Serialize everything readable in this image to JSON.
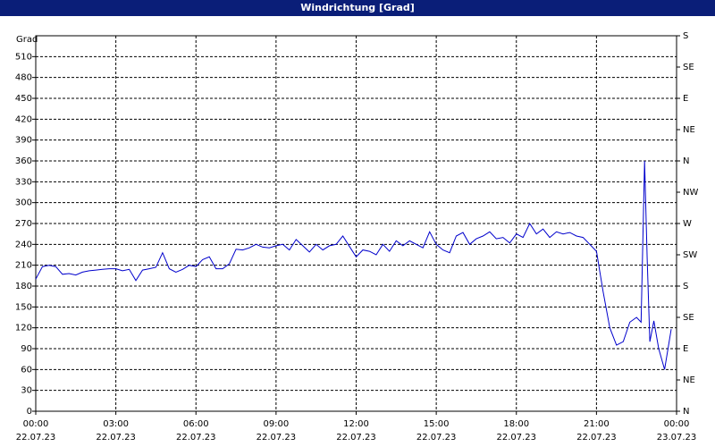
{
  "chart_data": {
    "type": "line",
    "title": "Windrichtung [Grad]",
    "y_label": "Grad",
    "x": [
      0,
      0.25,
      0.5,
      0.75,
      1,
      1.25,
      1.5,
      1.75,
      2,
      2.25,
      2.5,
      2.75,
      3,
      3.25,
      3.5,
      3.75,
      4,
      4.25,
      4.5,
      4.75,
      5,
      5.25,
      5.5,
      5.75,
      6,
      6.25,
      6.5,
      6.75,
      7,
      7.25,
      7.5,
      7.75,
      8,
      8.25,
      8.5,
      8.75,
      9,
      9.25,
      9.5,
      9.75,
      10,
      10.25,
      10.5,
      10.75,
      11,
      11.25,
      11.5,
      11.75,
      12,
      12.25,
      12.5,
      12.75,
      13,
      13.25,
      13.5,
      13.75,
      14,
      14.25,
      14.5,
      14.75,
      15,
      15.25,
      15.5,
      15.75,
      16,
      16.25,
      16.5,
      16.75,
      17,
      17.25,
      17.5,
      17.75,
      18,
      18.25,
      18.5,
      18.75,
      19,
      19.25,
      19.5,
      19.75,
      20,
      20.25,
      20.5,
      20.75,
      21,
      21.25,
      21.5,
      21.75,
      22,
      22.25,
      22.5,
      22.67,
      22.8,
      22.9,
      23,
      23.15,
      23.33,
      23.55,
      23.8
    ],
    "series": [
      {
        "color": "#0000cc",
        "values": [
          190,
          208,
          210,
          208,
          197,
          198,
          196,
          200,
          202,
          203,
          204,
          205,
          205,
          202,
          204,
          188,
          203,
          205,
          207,
          228,
          205,
          200,
          204,
          210,
          208,
          218,
          222,
          205,
          205,
          212,
          233,
          232,
          235,
          240,
          236,
          235,
          238,
          240,
          232,
          247,
          238,
          229,
          240,
          232,
          238,
          240,
          252,
          237,
          222,
          232,
          230,
          225,
          240,
          230,
          245,
          238,
          245,
          240,
          235,
          258,
          240,
          232,
          228,
          252,
          257,
          240,
          248,
          252,
          258,
          248,
          250,
          242,
          255,
          250,
          270,
          255,
          262,
          250,
          258,
          255,
          257,
          252,
          250,
          240,
          230,
          172,
          120,
          95,
          100,
          128,
          135,
          128,
          360,
          220,
          100,
          130,
          90,
          60,
          118
        ]
      }
    ],
    "xlim": [
      0,
      24
    ],
    "xticks": [
      {
        "value": 0,
        "label": "00:00"
      },
      {
        "value": 3,
        "label": "03:00"
      },
      {
        "value": 6,
        "label": "06:00"
      },
      {
        "value": 9,
        "label": "09:00"
      },
      {
        "value": 12,
        "label": "12:00"
      },
      {
        "value": 15,
        "label": "15:00"
      },
      {
        "value": 18,
        "label": "18:00"
      },
      {
        "value": 21,
        "label": "21:00"
      },
      {
        "value": 24,
        "label": "00:00"
      }
    ],
    "xtick_dates": [
      "22.07.23",
      "22.07.23",
      "22.07.23",
      "22.07.23",
      "22.07.23",
      "22.07.23",
      "22.07.23",
      "22.07.23",
      "23.07.23"
    ],
    "ylim": [
      0,
      540
    ],
    "yticks": [
      0,
      30,
      60,
      90,
      120,
      150,
      180,
      210,
      240,
      270,
      300,
      330,
      360,
      390,
      420,
      450,
      480,
      510
    ],
    "y2lim": [
      0,
      540
    ],
    "y2ticks": [
      {
        "value": 0,
        "label": "N"
      },
      {
        "value": 45,
        "label": "NE"
      },
      {
        "value": 90,
        "label": "E"
      },
      {
        "value": 135,
        "label": "SE"
      },
      {
        "value": 180,
        "label": "S"
      },
      {
        "value": 225,
        "label": "SW"
      },
      {
        "value": 270,
        "label": "W"
      },
      {
        "value": 315,
        "label": "NW"
      },
      {
        "value": 360,
        "label": "N"
      },
      {
        "value": 405,
        "label": "NE"
      },
      {
        "value": 450,
        "label": "E"
      },
      {
        "value": 495,
        "label": "SE"
      },
      {
        "value": 540,
        "label": "S"
      }
    ],
    "grid": true
  }
}
